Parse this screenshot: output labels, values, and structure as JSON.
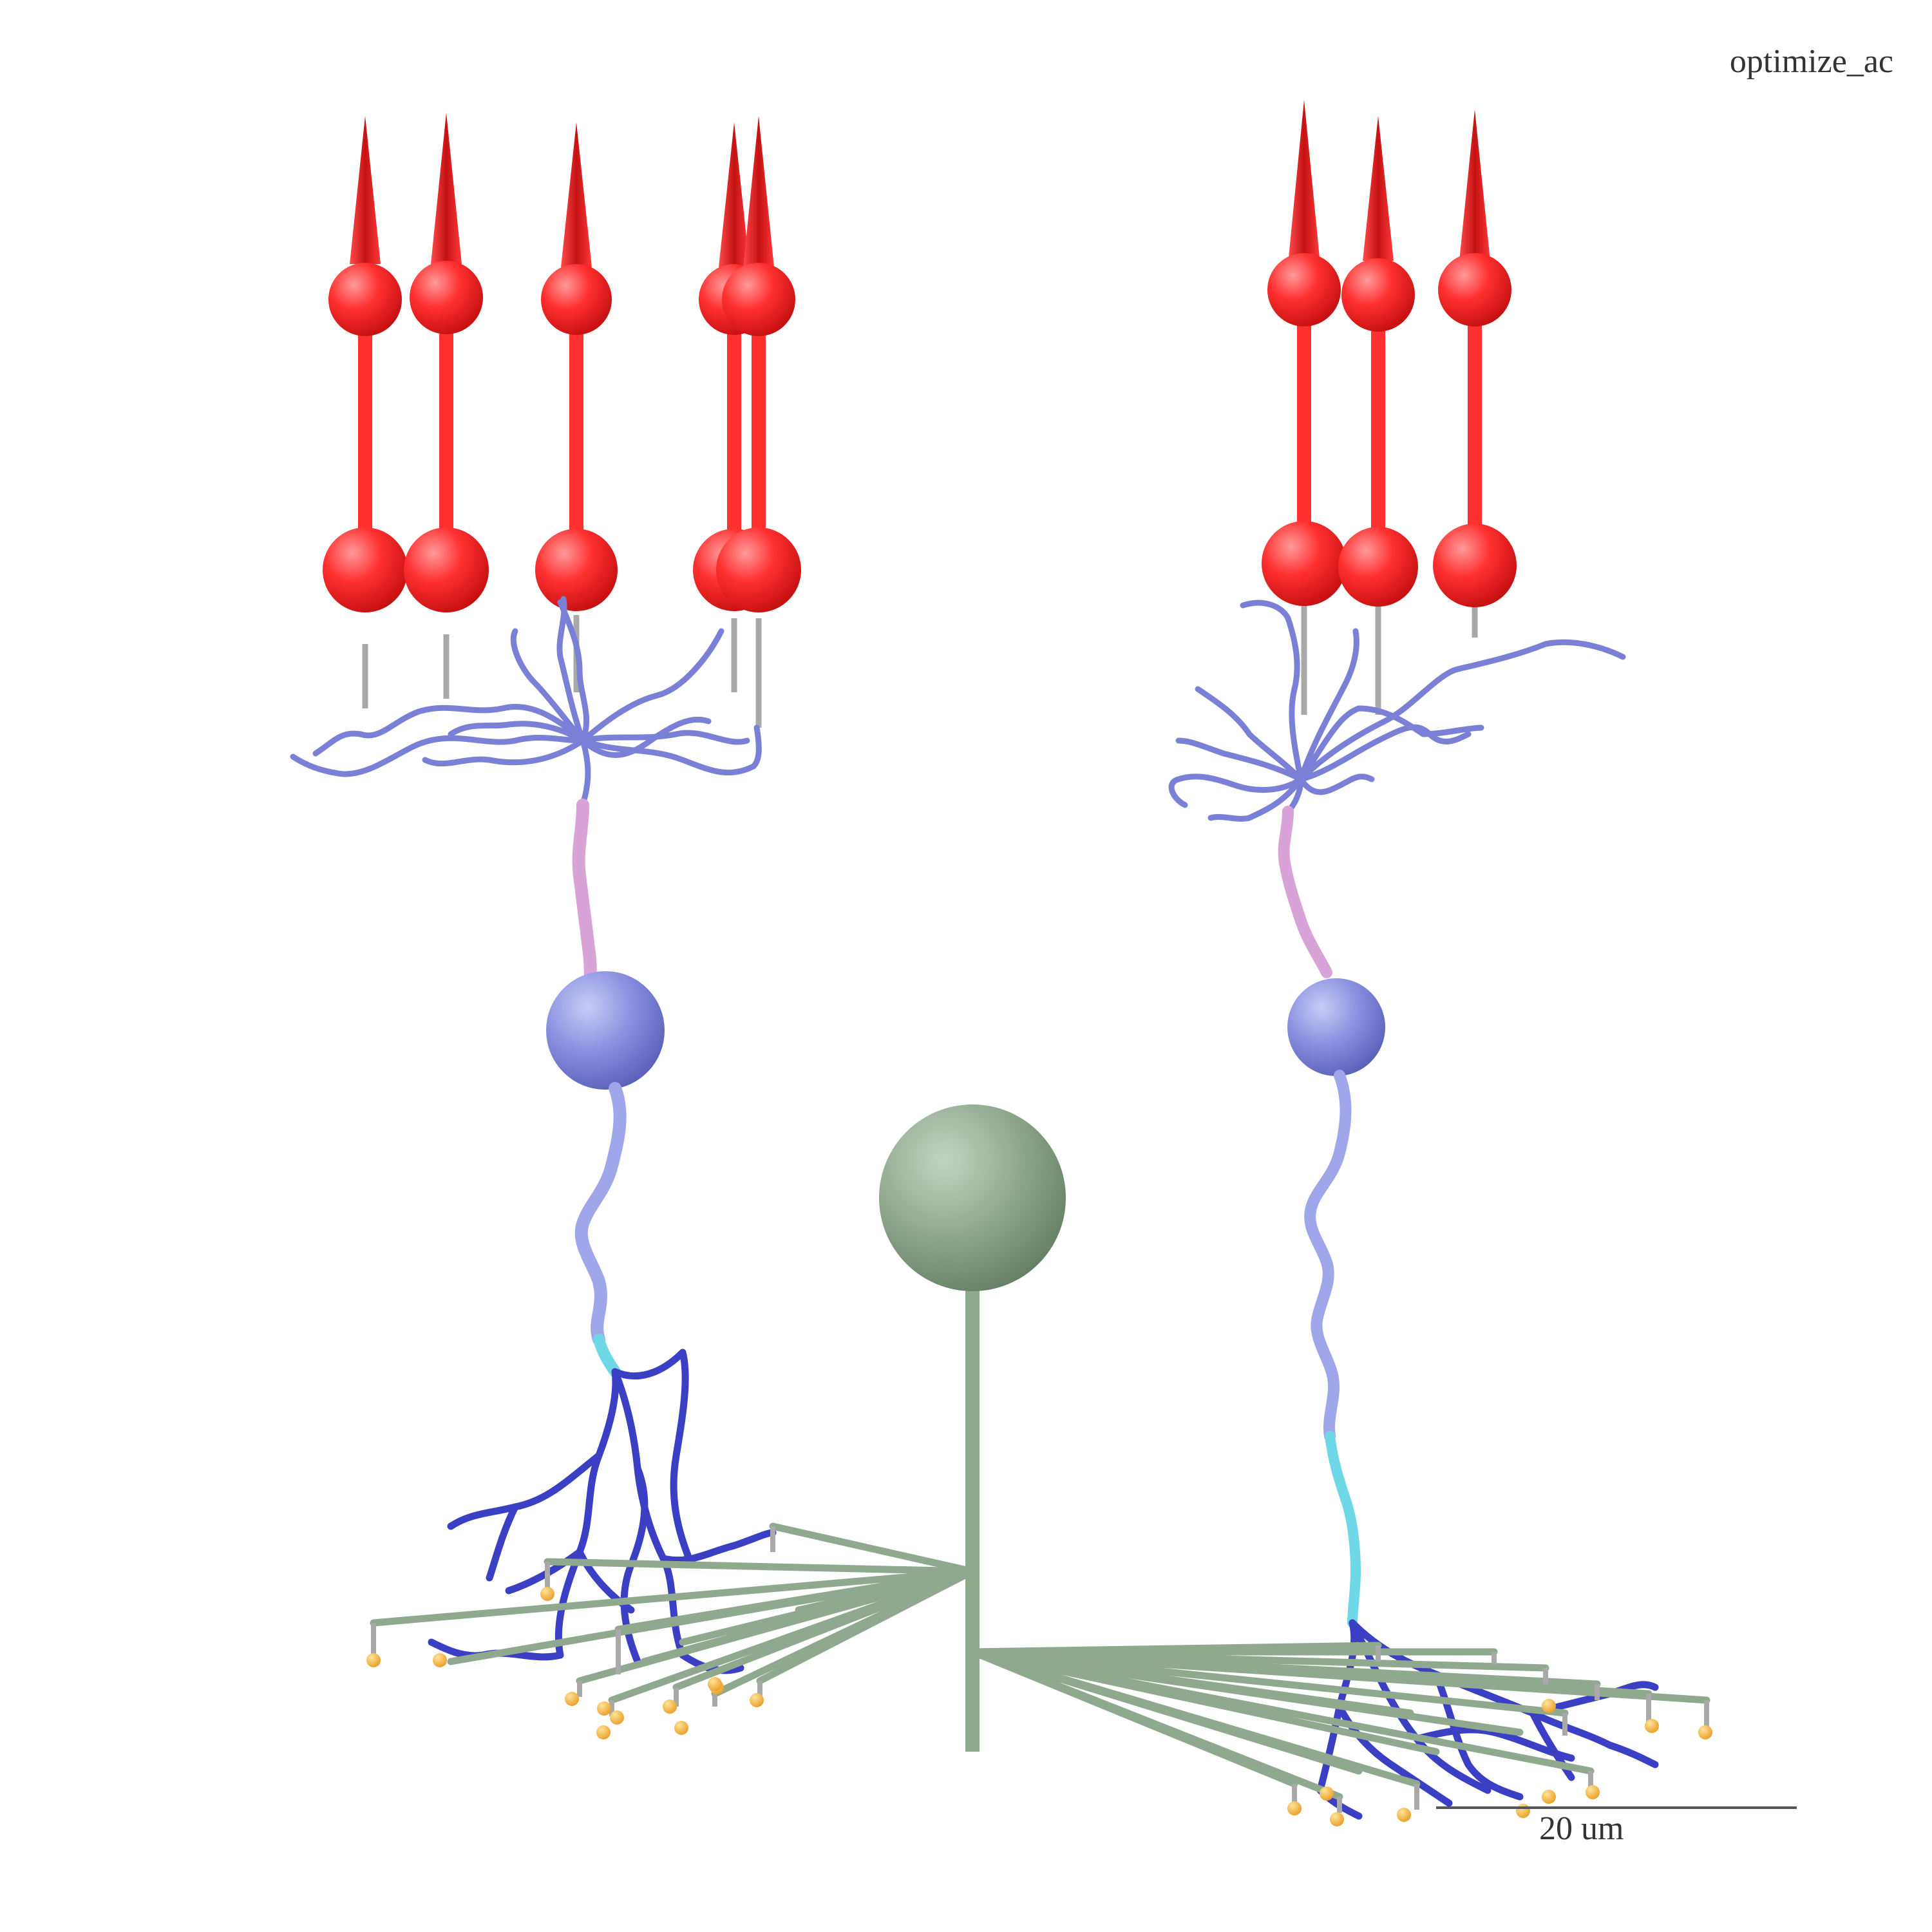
{
  "title": "optimize_ac",
  "scale_bar": {
    "label": "20 um"
  },
  "colors": {
    "photoreceptor": "#ff2a2a",
    "photoreceptor_stalk": "#a9a9a9",
    "bipolar_dendrite": "#7a80d6",
    "bipolar_soma": "#8a91e0",
    "bipolar_primary": "#d8a4d8",
    "bipolar_axon": "#9fa6ea",
    "axon_initial": "#6fd8e8",
    "axon_terminal": "#3a3fc4",
    "amacrine": "#8fa98f",
    "synapse": "#f0b23a",
    "scale_bar": "#555555"
  },
  "icons": {
    "photoreceptor": "cone-photoreceptor-icon",
    "bipolar": "bipolar-cell-icon",
    "amacrine": "amacrine-cell-icon",
    "synapse": "synapse-icon"
  }
}
